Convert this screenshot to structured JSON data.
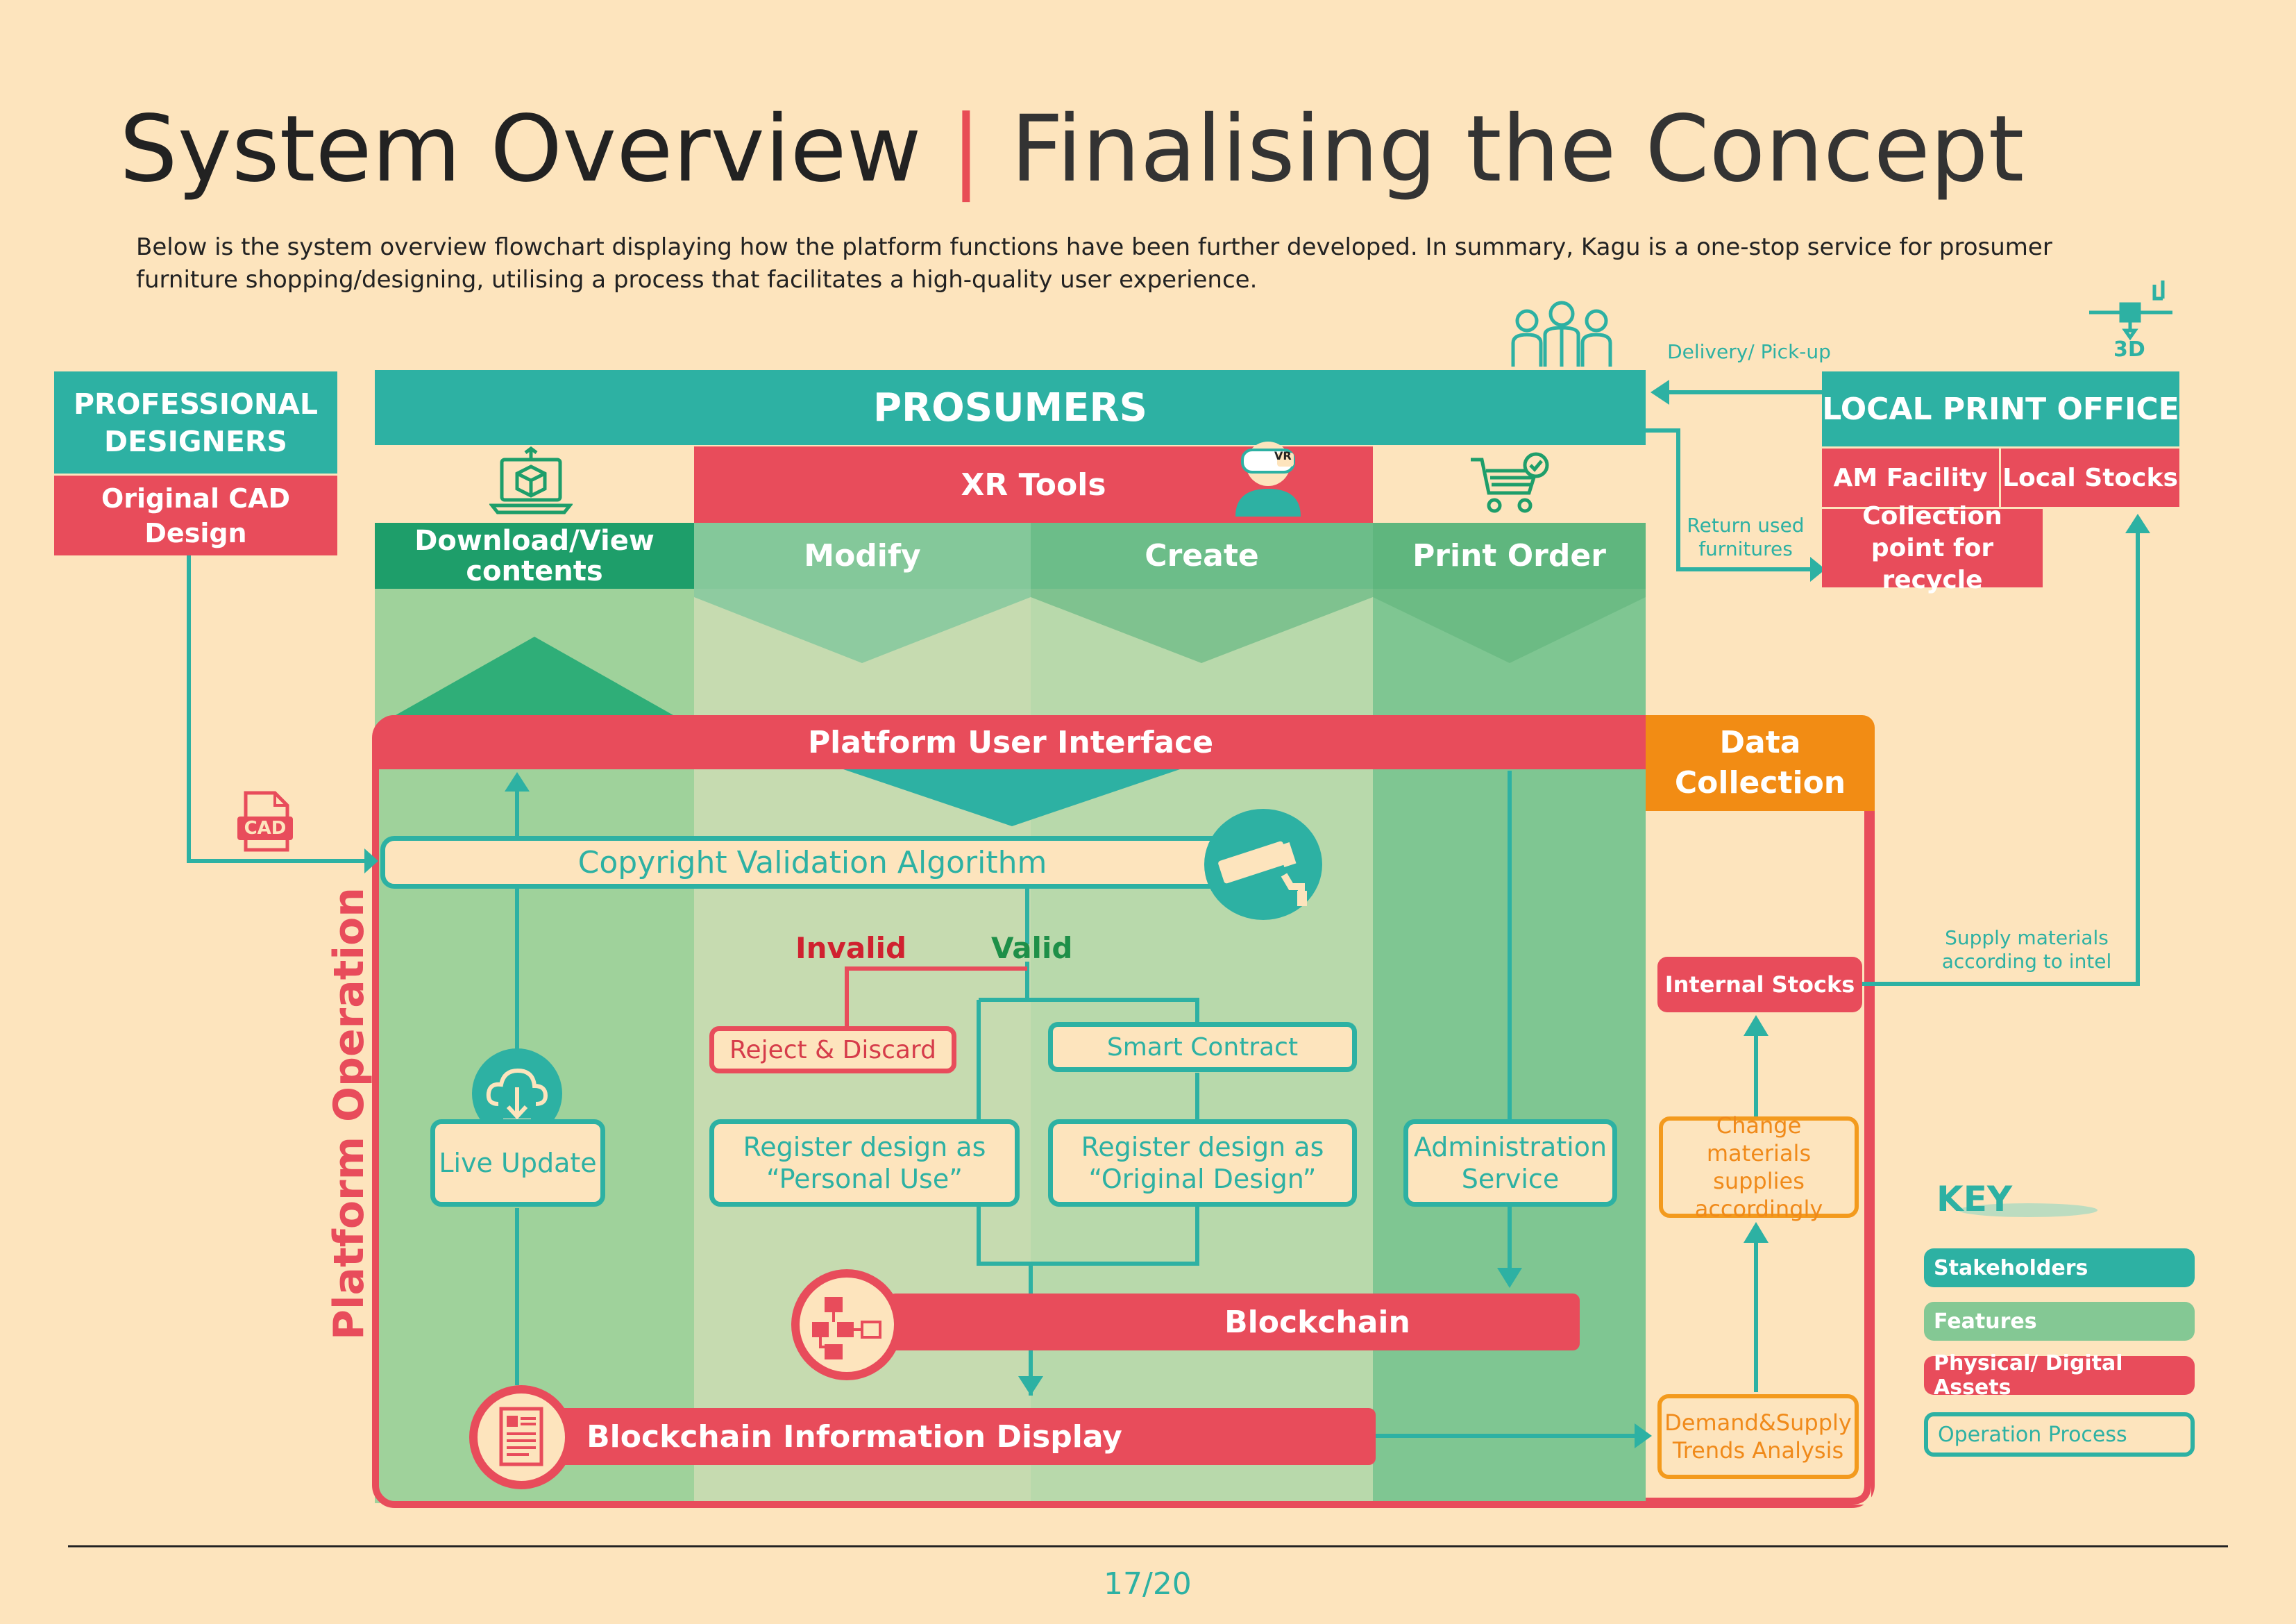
{
  "header": {
    "title_main": "System Overview",
    "title_bar": "|",
    "title_sub": "Finalising the Concept",
    "intro": "Below is the system overview flowchart displaying how the platform functions have been further developed. In summary, Kagu is a one-stop service for prosumer furniture shopping/designing, utilising a process that facilitates a high-quality user experience."
  },
  "stakeholders": {
    "professional_designers": "PROFESSIONAL DESIGNERS",
    "original_cad": "Original CAD Design",
    "prosumers": "PROSUMERS",
    "local_print_office": "LOCAL PRINT OFFICE",
    "am_facility": "AM Facility",
    "local_stocks": "Local Stocks",
    "collection_point": "Collection point for recycle"
  },
  "features": {
    "xr_tools": "XR Tools",
    "download_view": "Download/View contents",
    "modify": "Modify",
    "create": "Create",
    "print_order": "Print Order",
    "platform_ui": "Platform User Interface",
    "data_collection": "Data Collection"
  },
  "process": {
    "copyright": "Copyright Validation Algorithm",
    "invalid": "Invalid",
    "valid": "Valid",
    "reject": "Reject & Discard",
    "smart_contract": "Smart Contract",
    "register_personal": "Register design as “Personal Use”",
    "register_original": "Register design as “Original Design”",
    "live_update": "Live Update",
    "admin_service": "Administration Service",
    "blockchain": "Blockchain",
    "blockchain_display": "Blockchain Information Display",
    "internal_stocks": "Internal Stocks",
    "change_materials": "Change materials supplies accordingly",
    "demand_supply": "Demand&Supply Trends Analysis",
    "platform_operation": "Platform Operation"
  },
  "annotations": {
    "delivery": "Delivery/ Pick-up",
    "return_used": "Return used furnitures",
    "supply_materials": "Supply materials according to intel",
    "cad_label": "CAD",
    "vr_label": "VR",
    "print3d_label": "3D"
  },
  "key": {
    "title": "KEY",
    "items": [
      {
        "label": "Stakeholders",
        "color": "#2db1a3"
      },
      {
        "label": "Features",
        "color": "#84c894"
      },
      {
        "label": "Physical/ Digital Assets",
        "color": "#e84c5b"
      },
      {
        "label": "Operation Process",
        "color": "#2db1a3"
      }
    ]
  },
  "footer": {
    "page": "17/20"
  },
  "colors": {
    "teal": "#2db1a3",
    "red": "#e84c5b",
    "orange": "#f39a1d",
    "bg": "#fde4bd"
  }
}
